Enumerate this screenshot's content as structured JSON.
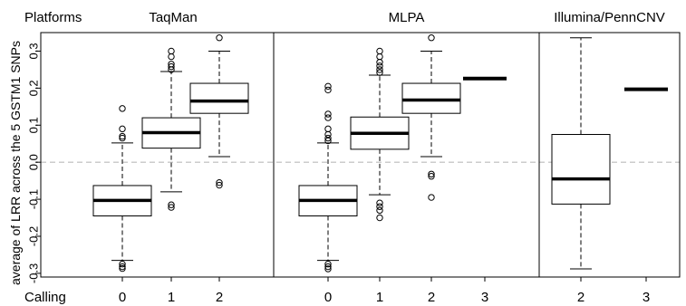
{
  "header": {
    "platforms_label": "Platforms",
    "calling_label": "Calling"
  },
  "chart_data": {
    "type": "box",
    "ylabel": "average of LRR across the 5 GSTM1 SNPs",
    "ylim": [
      -0.31,
      0.35
    ],
    "yticks": [
      -0.3,
      -0.2,
      -0.1,
      0.0,
      0.1,
      0.2,
      0.3
    ],
    "ytick_labels": [
      "-0.3",
      "-0.2",
      "-0.1",
      "0.0",
      "0.1",
      "0.2",
      "0.3"
    ],
    "reference_line": {
      "y": 0.0,
      "style": "dashed",
      "color": "#bbbbbb"
    },
    "panels": [
      {
        "title": "TaqMan",
        "groups": [
          {
            "calling": "0",
            "whisker_low": -0.265,
            "q1": -0.145,
            "median": -0.103,
            "q3": -0.063,
            "whisker_high": 0.052,
            "outliers": [
              0.145,
              0.09,
              0.07,
              0.065,
              -0.275,
              -0.282,
              -0.287
            ]
          },
          {
            "calling": "1",
            "whisker_low": -0.08,
            "q1": 0.038,
            "median": 0.08,
            "q3": 0.12,
            "whisker_high": 0.245,
            "outliers": [
              0.3,
              0.285,
              0.265,
              0.258,
              0.25,
              -0.115,
              -0.122
            ]
          },
          {
            "calling": "2",
            "whisker_low": 0.015,
            "q1": 0.132,
            "median": 0.165,
            "q3": 0.213,
            "whisker_high": 0.3,
            "outliers": [
              0.336,
              -0.055,
              -0.062
            ]
          }
        ]
      },
      {
        "title": "MLPA",
        "groups": [
          {
            "calling": "0",
            "whisker_low": -0.265,
            "q1": -0.145,
            "median": -0.103,
            "q3": -0.063,
            "whisker_high": 0.052,
            "outliers": [
              0.205,
              0.195,
              0.13,
              0.12,
              0.09,
              0.075,
              0.065,
              0.058,
              -0.275,
              -0.282,
              -0.288
            ]
          },
          {
            "calling": "1",
            "whisker_low": -0.088,
            "q1": 0.035,
            "median": 0.078,
            "q3": 0.122,
            "whisker_high": 0.235,
            "outliers": [
              0.3,
              0.285,
              0.27,
              0.26,
              0.25,
              0.242,
              -0.11,
              -0.12,
              -0.13,
              -0.15
            ]
          },
          {
            "calling": "2",
            "whisker_low": 0.015,
            "q1": 0.132,
            "median": 0.168,
            "q3": 0.213,
            "whisker_high": 0.3,
            "outliers": [
              0.336,
              -0.032,
              -0.038,
              -0.095
            ]
          },
          {
            "calling": "3",
            "single_value": 0.226
          }
        ]
      },
      {
        "title": "Illumina/PennCNV",
        "groups": [
          {
            "calling": "2",
            "whisker_low": -0.288,
            "q1": -0.113,
            "median": -0.045,
            "q3": 0.075,
            "whisker_high": 0.336,
            "outliers": []
          },
          {
            "calling": "3",
            "single_value": 0.197
          }
        ]
      }
    ]
  }
}
